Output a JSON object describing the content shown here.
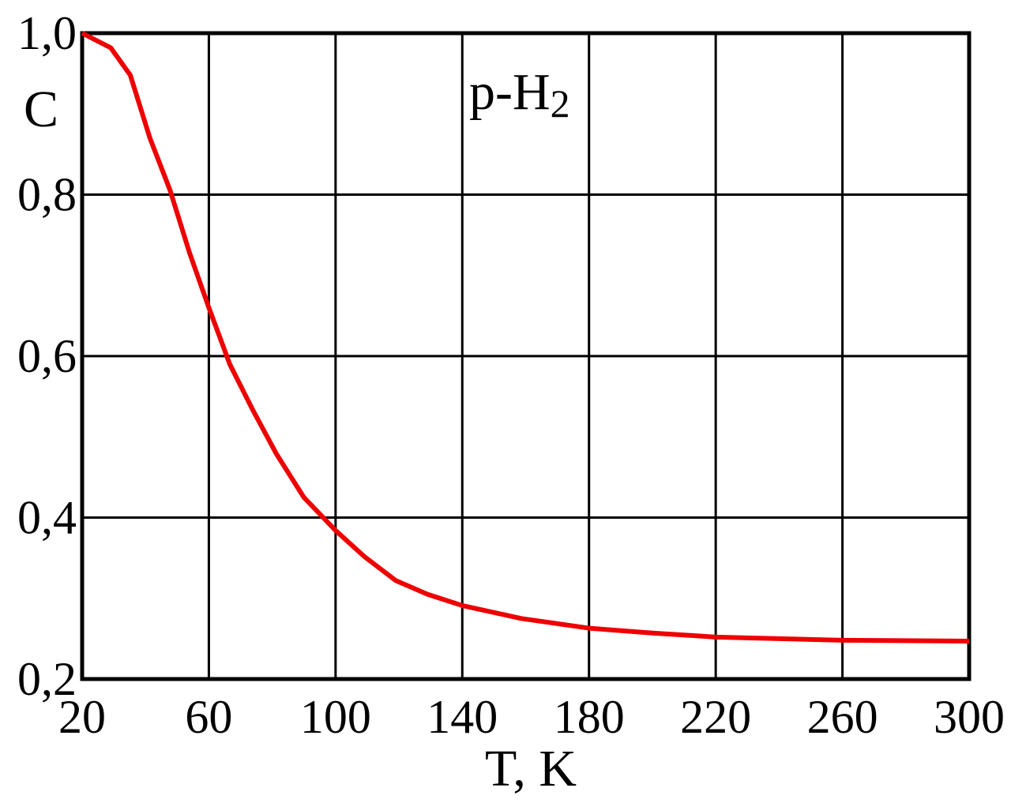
{
  "chart_data": {
    "type": "line",
    "title": {
      "text": "p-H",
      "subscript": "2"
    },
    "x_label": "T, K",
    "y_label": "C",
    "x": [
      20,
      29,
      35.2,
      41.4,
      47.7,
      53.9,
      60,
      66.6,
      73.9,
      81.3,
      90,
      100,
      109,
      119,
      129,
      140,
      158.6,
      180,
      200,
      220,
      260,
      300
    ],
    "series": [
      {
        "name": "p-H2",
        "color": "#ee0000",
        "values": [
          1.0,
          0.982,
          0.948,
          0.87,
          0.806,
          0.728,
          0.66,
          0.59,
          0.533,
          0.479,
          0.425,
          0.384,
          0.352,
          0.322,
          0.305,
          0.291,
          0.275,
          0.263,
          0.257,
          0.252,
          0.248,
          0.247
        ]
      }
    ],
    "xlim": [
      20,
      300
    ],
    "xticks": [
      20,
      60,
      100,
      140,
      180,
      220,
      260,
      300
    ],
    "ylim": [
      0.2,
      1.0
    ],
    "yticks": [
      {
        "value": 0.2,
        "label": "0,2"
      },
      {
        "value": 0.4,
        "label": "0,4"
      },
      {
        "value": 0.6,
        "label": "0,6"
      },
      {
        "value": 0.8,
        "label": "0,8"
      },
      {
        "value": 1.0,
        "label": "1,0"
      }
    ],
    "grid": true
  }
}
